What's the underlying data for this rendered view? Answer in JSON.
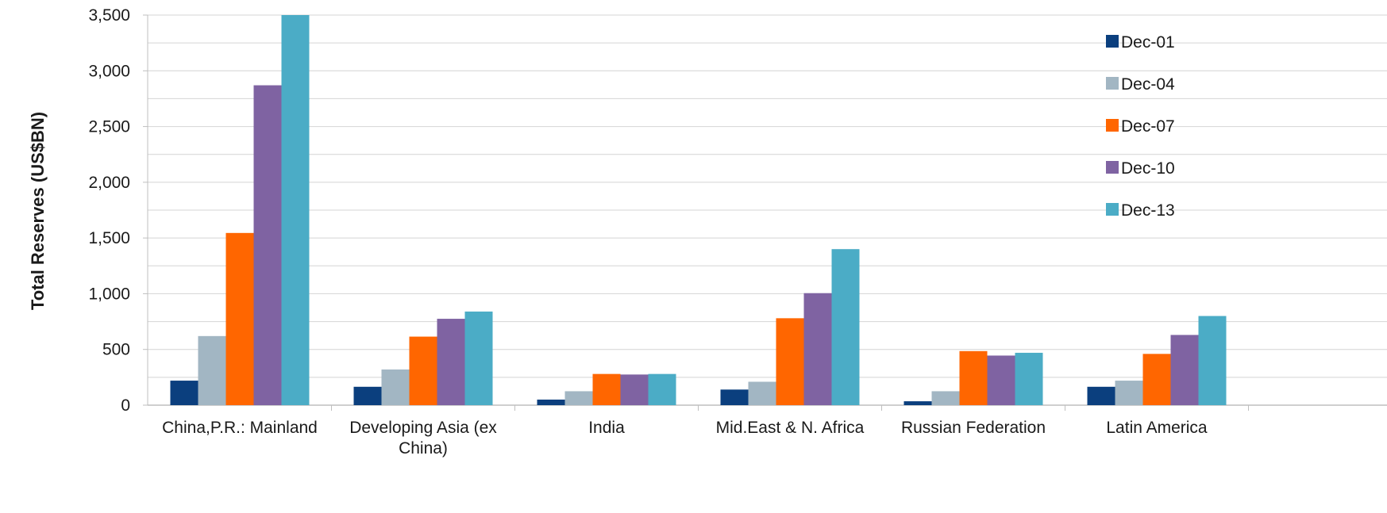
{
  "chart_data": {
    "type": "bar",
    "title": "",
    "xlabel": "",
    "ylabel": "Total Reserves (US$BN)",
    "ylim": [
      0,
      3500
    ],
    "yticks": [
      0,
      500,
      1000,
      1500,
      2000,
      2500,
      3000,
      3500
    ],
    "ytick_labels": [
      "0",
      "500",
      "1,000",
      "1,500",
      "2,000",
      "2,500",
      "3,000",
      "3,500"
    ],
    "grid": true,
    "legend_position": "top-right",
    "categories": [
      [
        "China,P.R.: Mainland"
      ],
      [
        "Developing Asia (ex",
        "China)"
      ],
      [
        "India"
      ],
      [
        "Mid.East & N. Africa"
      ],
      [
        "Russian Federation"
      ],
      [
        "Latin America"
      ]
    ],
    "series": [
      {
        "name": "Dec-01",
        "color": "#0b3f7e",
        "values": [
          220,
          165,
          50,
          140,
          35,
          165
        ]
      },
      {
        "name": "Dec-04",
        "color": "#a2b6c3",
        "values": [
          620,
          320,
          125,
          210,
          125,
          220
        ]
      },
      {
        "name": "Dec-07",
        "color": "#ff6600",
        "values": [
          1545,
          615,
          280,
          780,
          485,
          460
        ]
      },
      {
        "name": "Dec-10",
        "color": "#7f63a2",
        "values": [
          2870,
          775,
          275,
          1005,
          445,
          630
        ]
      },
      {
        "name": "Dec-13",
        "color": "#4bacc6",
        "values": [
          3500,
          840,
          280,
          1400,
          470,
          800
        ]
      }
    ]
  }
}
